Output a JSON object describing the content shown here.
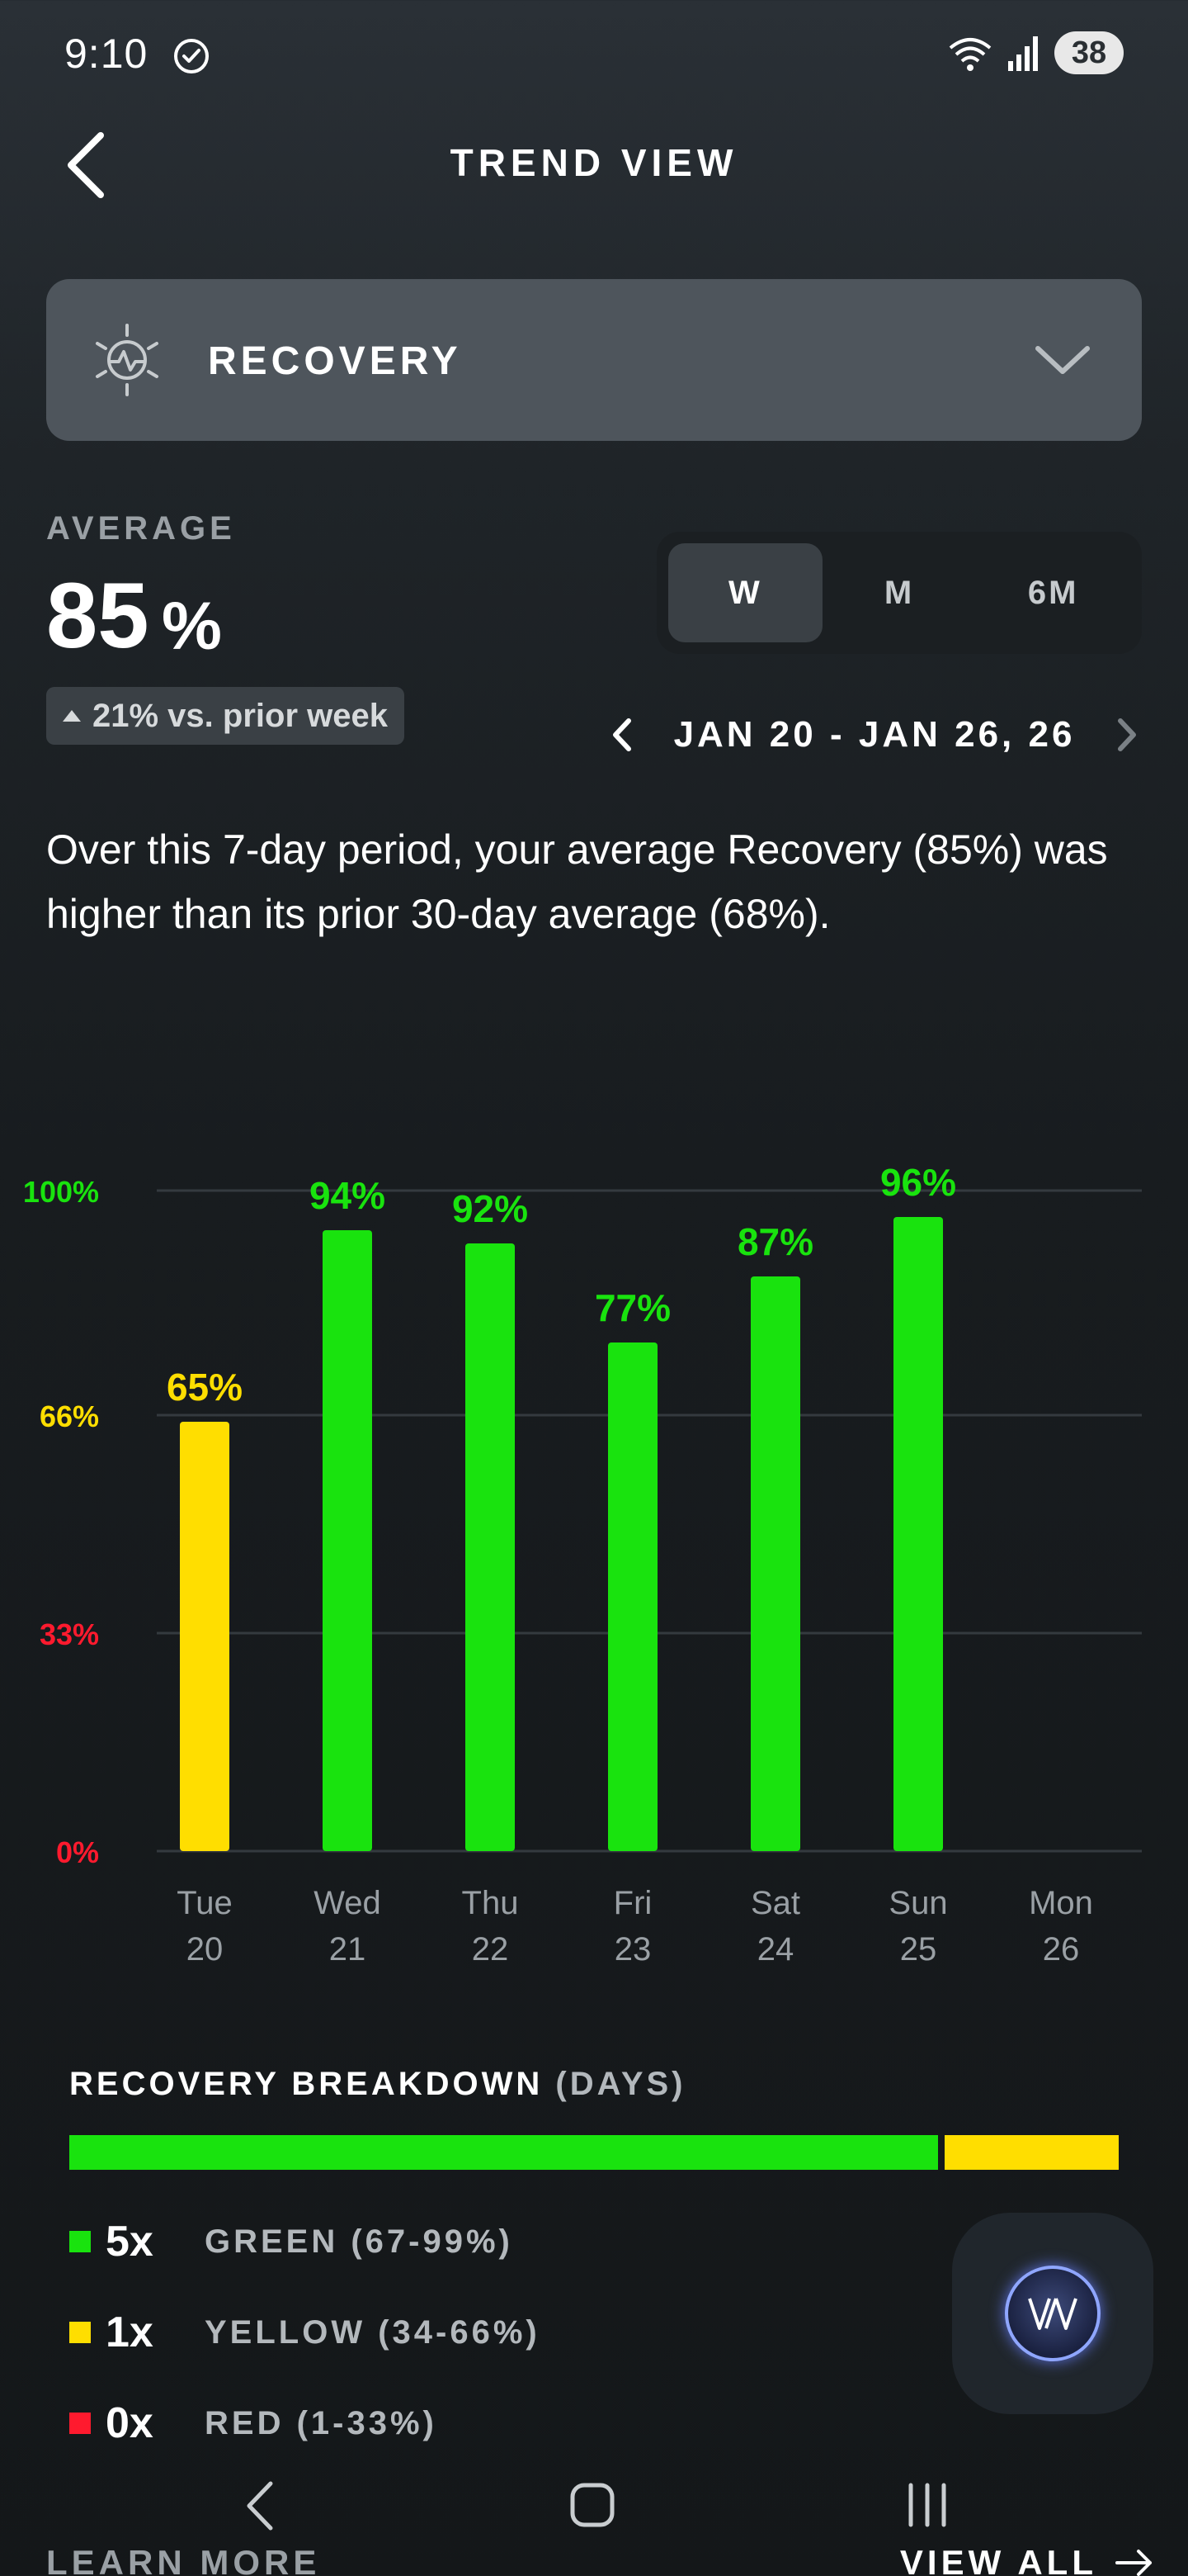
{
  "status_bar": {
    "time": "9:10",
    "battery": "38"
  },
  "header": {
    "title": "TREND VIEW"
  },
  "metric_selector": {
    "label": "RECOVERY"
  },
  "average": {
    "label": "AVERAGE",
    "value": "85",
    "unit": "%",
    "delta": "21% vs. prior week"
  },
  "range_toggle": {
    "options": [
      "W",
      "M",
      "6M"
    ],
    "selected": "W"
  },
  "date_range": {
    "label": "JAN 20 - JAN 26, 26"
  },
  "summary": "Over this 7-day period, your average Recovery (85%) was higher than its prior 30-day average (68%).",
  "chart_data": {
    "type": "bar",
    "categories": [
      {
        "day": "Tue",
        "date": "20"
      },
      {
        "day": "Wed",
        "date": "21"
      },
      {
        "day": "Thu",
        "date": "22"
      },
      {
        "day": "Fri",
        "date": "23"
      },
      {
        "day": "Sat",
        "date": "24"
      },
      {
        "day": "Sun",
        "date": "25"
      },
      {
        "day": "Mon",
        "date": "26"
      }
    ],
    "values": [
      65,
      94,
      92,
      77,
      87,
      96,
      null
    ],
    "value_labels": [
      "65%",
      "94%",
      "92%",
      "77%",
      "87%",
      "96%",
      ""
    ],
    "ylim": [
      0,
      100
    ],
    "y_ticks": [
      {
        "value": 100,
        "label": "100%",
        "color": "#19e30e"
      },
      {
        "value": 66,
        "label": "66%",
        "color": "#ffde00"
      },
      {
        "value": 33,
        "label": "33%",
        "color": "#ff1a2e"
      },
      {
        "value": 0,
        "label": "0%",
        "color": "#ff1a2e"
      }
    ],
    "colors": {
      "green": "#19e30e",
      "yellow": "#ffde00",
      "red": "#ff1a2e"
    },
    "thresholds": {
      "yellow_max": 66,
      "red_max": 33
    },
    "grid": true
  },
  "breakdown": {
    "title": "RECOVERY BREAKDOWN",
    "subtitle": "(DAYS)",
    "bar": {
      "green_fraction": 0.833,
      "yellow_fraction": 0.167
    },
    "rows": [
      {
        "count": "5x",
        "label": "GREEN (67-99%)",
        "color": "#19e30e"
      },
      {
        "count": "1x",
        "label": "YELLOW (34-66%)",
        "color": "#ffde00"
      },
      {
        "count": "0x",
        "label": "RED (1-33%)",
        "color": "#ff1a2e"
      }
    ]
  },
  "footer": {
    "learn_more": "LEARN MORE",
    "view_all": "VIEW ALL"
  }
}
